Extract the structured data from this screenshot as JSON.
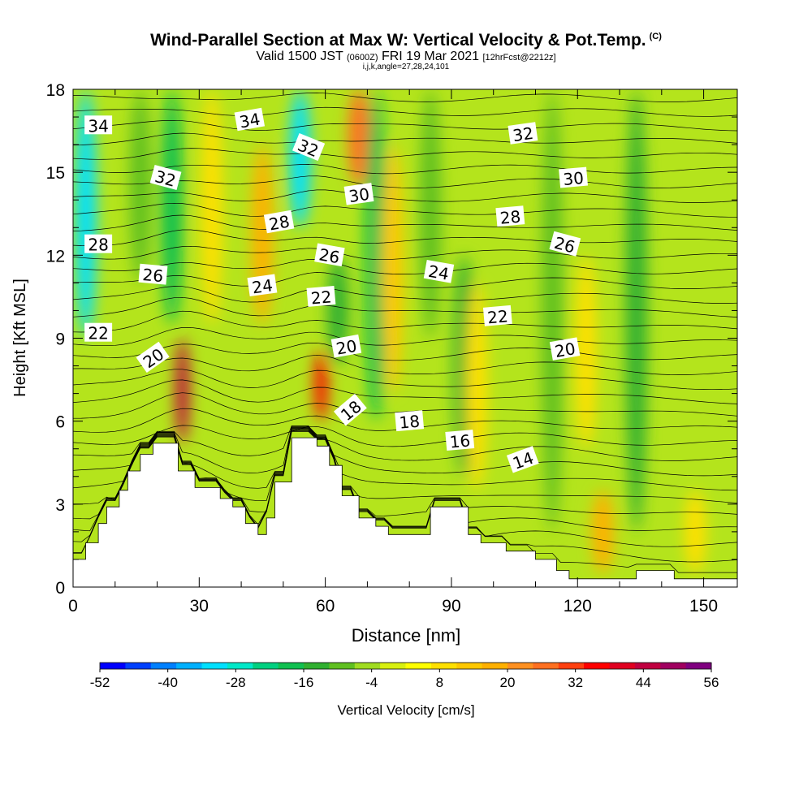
{
  "chart_data": {
    "type": "heatmap",
    "title": "Wind-Parallel Section at Max W: Vertical Velocity & Pot.Temp.",
    "title_mark": "(C)",
    "subtitle_main": "Valid 1500 JST",
    "subtitle_zulu": "(0600Z)",
    "subtitle_date": "FRI 19 Mar 2021",
    "subtitle_fcst": "[12hrFcst@2212z]",
    "subsubtitle": "i,j,k,angle=27,28,24,101",
    "xlabel": "Distance [nm]",
    "ylabel": "Height [Kft MSL]",
    "xlim": [
      0,
      158
    ],
    "ylim": [
      0,
      18
    ],
    "xticks": [
      "0",
      "30",
      "60",
      "90",
      "120",
      "150"
    ],
    "yticks": [
      "0",
      "3",
      "6",
      "9",
      "12",
      "15",
      "18"
    ],
    "colorbar": {
      "label": "Vertical Velocity [cm/s]",
      "min": -52,
      "max": 56,
      "tick_labels": [
        "-52",
        "-40",
        "-28",
        "-16",
        "-4",
        "8",
        "20",
        "32",
        "44",
        "56"
      ],
      "colors": [
        "#0000ff",
        "#0040ff",
        "#0080ff",
        "#00b0ff",
        "#00e0ff",
        "#00e8c8",
        "#00d080",
        "#10c050",
        "#30b030",
        "#60c020",
        "#a0dc20",
        "#d8f010",
        "#ffff00",
        "#ffe000",
        "#ffc800",
        "#ffb000",
        "#ff9020",
        "#ff7020",
        "#ff4010",
        "#ff0000",
        "#e00020",
        "#c00040",
        "#a00060",
        "#800080"
      ]
    },
    "terrain_kft": [
      [
        0,
        1.0
      ],
      [
        3,
        1.0
      ],
      [
        3,
        1.6
      ],
      [
        6,
        1.6
      ],
      [
        6,
        2.3
      ],
      [
        8,
        2.3
      ],
      [
        8,
        2.9
      ],
      [
        11,
        2.9
      ],
      [
        11,
        3.5
      ],
      [
        13,
        3.5
      ],
      [
        13,
        4.2
      ],
      [
        16,
        4.2
      ],
      [
        16,
        4.8
      ],
      [
        19,
        4.8
      ],
      [
        19,
        5.2
      ],
      [
        25,
        5.2
      ],
      [
        25,
        4.2
      ],
      [
        29,
        4.2
      ],
      [
        29,
        3.6
      ],
      [
        35,
        3.6
      ],
      [
        35,
        3.2
      ],
      [
        38,
        3.2
      ],
      [
        38,
        2.9
      ],
      [
        41,
        2.9
      ],
      [
        41,
        2.3
      ],
      [
        44,
        2.3
      ],
      [
        44,
        1.9
      ],
      [
        46,
        1.9
      ],
      [
        46,
        2.5
      ],
      [
        48,
        2.5
      ],
      [
        48,
        3.8
      ],
      [
        52,
        3.8
      ],
      [
        52,
        5.4
      ],
      [
        58,
        5.4
      ],
      [
        58,
        5.1
      ],
      [
        61,
        5.1
      ],
      [
        61,
        4.4
      ],
      [
        64,
        4.4
      ],
      [
        64,
        3.3
      ],
      [
        68,
        3.3
      ],
      [
        68,
        2.5
      ],
      [
        72,
        2.5
      ],
      [
        72,
        2.2
      ],
      [
        75,
        2.2
      ],
      [
        75,
        1.9
      ],
      [
        85,
        1.9
      ],
      [
        85,
        2.9
      ],
      [
        94,
        2.9
      ],
      [
        94,
        1.9
      ],
      [
        97,
        1.9
      ],
      [
        97,
        1.6
      ],
      [
        103,
        1.6
      ],
      [
        103,
        1.3
      ],
      [
        110,
        1.3
      ],
      [
        110,
        1.0
      ],
      [
        115,
        1.0
      ],
      [
        115,
        0.6
      ],
      [
        118,
        0.6
      ],
      [
        118,
        0.3
      ],
      [
        134,
        0.3
      ],
      [
        134,
        0.6
      ],
      [
        143,
        0.6
      ],
      [
        143,
        0.3
      ],
      [
        158,
        0.3
      ]
    ],
    "w_columns": [
      {
        "x": 3,
        "w": -30,
        "y0": 9.0,
        "y1": 18
      },
      {
        "x": 23.5,
        "w": -18,
        "y0": 9.5,
        "y1": 18
      },
      {
        "x": 16,
        "w": -8,
        "y0": 11,
        "y1": 18
      },
      {
        "x": 26,
        "w": 44,
        "y0": 5.2,
        "y1": 9.0
      },
      {
        "x": 33,
        "w": 10,
        "y0": 9.5,
        "y1": 18
      },
      {
        "x": 45,
        "w": 16,
        "y0": 9.5,
        "y1": 16
      },
      {
        "x": 54,
        "w": -30,
        "y0": 13.0,
        "y1": 18
      },
      {
        "x": 59,
        "w": 36,
        "y0": 6.0,
        "y1": 8.6
      },
      {
        "x": 63,
        "w": -12,
        "y0": 8.0,
        "y1": 12
      },
      {
        "x": 68,
        "w": 28,
        "y0": 14.5,
        "y1": 18
      },
      {
        "x": 72,
        "w": -20,
        "y0": 6.0,
        "y1": 18
      },
      {
        "x": 76,
        "w": 12,
        "y0": 7.0,
        "y1": 16
      },
      {
        "x": 85,
        "w": -8,
        "y0": 9.0,
        "y1": 18
      },
      {
        "x": 93,
        "w": -12,
        "y0": 4.0,
        "y1": 12
      },
      {
        "x": 96,
        "w": 10,
        "y0": 3.5,
        "y1": 11
      },
      {
        "x": 114,
        "w": -10,
        "y0": 2.0,
        "y1": 18
      },
      {
        "x": 122,
        "w": 10,
        "y0": 5.0,
        "y1": 12
      },
      {
        "x": 126,
        "w": 18,
        "y0": 0.5,
        "y1": 3.5
      },
      {
        "x": 134,
        "w": -14,
        "y0": 2.0,
        "y1": 18
      },
      {
        "x": 148,
        "w": 10,
        "y0": 0.5,
        "y1": 3.5
      }
    ],
    "theta_contours": [
      {
        "label": "14",
        "base": 2.3,
        "lx": 107,
        "ly": 4.6
      },
      {
        "label": "16",
        "base": 3.6,
        "lx": 92,
        "ly": 5.3
      },
      {
        "label": "18",
        "base": 5.1,
        "lx": 80,
        "ly": 6.0
      },
      {
        "label": "20",
        "base": 7.6,
        "lx": 65,
        "ly": 8.7
      },
      {
        "label": "22",
        "base": 9.3,
        "lx": 59,
        "ly": 10.5
      },
      {
        "label": "24",
        "base": 10.5,
        "lx": 45,
        "ly": 10.9
      },
      {
        "label": "26",
        "base": 12.0,
        "lx": 61,
        "ly": 12.0
      },
      {
        "label": "28",
        "base": 12.6,
        "lx": 49,
        "ly": 13.2
      },
      {
        "label": "30",
        "base": 13.6,
        "lx": 68,
        "ly": 14.2
      },
      {
        "label": "32",
        "base": 15.8,
        "lx": 56,
        "ly": 15.9
      },
      {
        "label": "34",
        "base": 16.7,
        "lx": 42,
        "ly": 16.9
      }
    ],
    "contour_labels": [
      {
        "text": "34",
        "x": 6,
        "y": 16.7,
        "rot": 0
      },
      {
        "text": "34",
        "x": 42,
        "y": 16.9,
        "rot": -10
      },
      {
        "text": "32",
        "x": 22,
        "y": 14.8,
        "rot": 15
      },
      {
        "text": "32",
        "x": 56,
        "y": 15.9,
        "rot": 22
      },
      {
        "text": "32",
        "x": 107,
        "y": 16.4,
        "rot": -8
      },
      {
        "text": "30",
        "x": 68,
        "y": 14.2,
        "rot": -8
      },
      {
        "text": "30",
        "x": 119,
        "y": 14.8,
        "rot": -5
      },
      {
        "text": "28",
        "x": 6,
        "y": 12.4,
        "rot": 0
      },
      {
        "text": "28",
        "x": 49,
        "y": 13.2,
        "rot": -10
      },
      {
        "text": "28",
        "x": 104,
        "y": 13.4,
        "rot": -5
      },
      {
        "text": "26",
        "x": 19,
        "y": 11.3,
        "rot": 5
      },
      {
        "text": "26",
        "x": 61,
        "y": 12.0,
        "rot": 10
      },
      {
        "text": "26",
        "x": 117,
        "y": 12.4,
        "rot": 15
      },
      {
        "text": "24",
        "x": 45,
        "y": 10.9,
        "rot": -8
      },
      {
        "text": "24",
        "x": 87,
        "y": 11.4,
        "rot": 10
      },
      {
        "text": "22",
        "x": 6,
        "y": 9.2,
        "rot": 0
      },
      {
        "text": "22",
        "x": 59,
        "y": 10.5,
        "rot": -5
      },
      {
        "text": "22",
        "x": 101,
        "y": 9.8,
        "rot": -5
      },
      {
        "text": "20",
        "x": 19,
        "y": 8.3,
        "rot": -35
      },
      {
        "text": "20",
        "x": 65,
        "y": 8.7,
        "rot": -10
      },
      {
        "text": "20",
        "x": 117,
        "y": 8.6,
        "rot": -10
      },
      {
        "text": "18",
        "x": 66,
        "y": 6.4,
        "rot": -40
      },
      {
        "text": "18",
        "x": 80,
        "y": 6.0,
        "rot": -5
      },
      {
        "text": "16",
        "x": 92,
        "y": 5.3,
        "rot": -5
      },
      {
        "text": "14",
        "x": 107,
        "y": 4.6,
        "rot": -20
      }
    ]
  }
}
